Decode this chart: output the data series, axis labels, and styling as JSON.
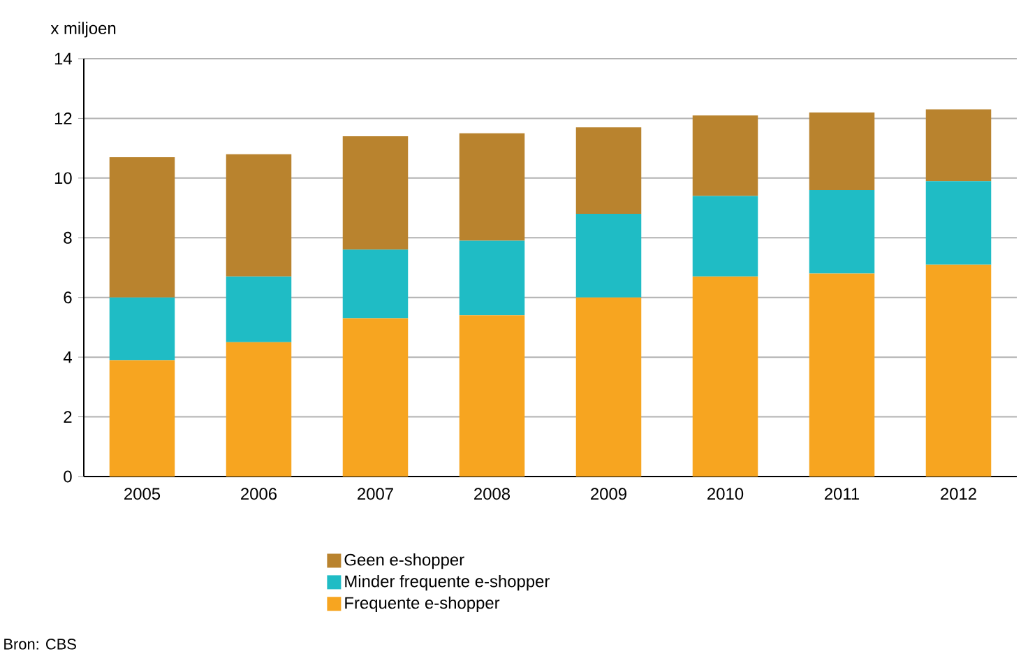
{
  "chart_data": {
    "type": "bar",
    "stacked": true,
    "ylabel": "x miljoen",
    "categories": [
      "2005",
      "2006",
      "2007",
      "2008",
      "2009",
      "2010",
      "2011",
      "2012"
    ],
    "series": [
      {
        "name": "Frequente e-shopper",
        "color": "#f7a520",
        "values": [
          3.9,
          4.5,
          5.3,
          5.4,
          6.0,
          6.7,
          6.8,
          7.1
        ]
      },
      {
        "name": "Minder frequente e-shopper",
        "color": "#1fbcc5",
        "values": [
          2.1,
          2.2,
          2.3,
          2.5,
          2.8,
          2.7,
          2.8,
          2.8
        ]
      },
      {
        "name": "Geen e-shopper",
        "color": "#b9832e",
        "values": [
          4.7,
          4.1,
          3.8,
          3.6,
          2.9,
          2.7,
          2.6,
          2.4
        ]
      }
    ],
    "ylim": [
      0,
      14
    ],
    "yticks": [
      0,
      2,
      4,
      6,
      8,
      10,
      12,
      14
    ],
    "grid": "y",
    "legend": "bottom",
    "annotations": [
      "Bron: CBS"
    ]
  }
}
